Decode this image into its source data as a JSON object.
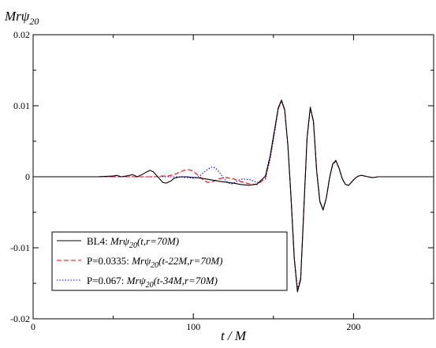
{
  "chart_data": {
    "type": "line",
    "title": "",
    "ylabel": "Mrψ20",
    "xlabel": "t / M",
    "xlim": [
      0,
      250
    ],
    "ylim": [
      -0.02,
      0.02
    ],
    "x_ticks": [
      0,
      100,
      200
    ],
    "y_ticks": [
      -0.02,
      -0.01,
      0,
      0.01,
      0.02
    ],
    "x_tick_labels": [
      "0",
      "100",
      "200"
    ],
    "y_tick_labels": [
      "-0.02",
      "-0.01",
      "0",
      "0.01",
      "0.02"
    ],
    "grid": false,
    "legend_position": "bottom-left",
    "series": [
      {
        "name": "BL4: Mrψ20(t,r=70M)",
        "color": "#000000",
        "dash": "solid",
        "x": [
          0,
          20,
          40,
          50,
          52,
          55,
          58,
          62,
          65,
          68,
          71,
          73,
          75,
          77,
          79,
          81,
          83,
          86,
          88,
          92,
          96,
          100,
          105,
          110,
          118,
          125,
          130,
          135,
          140,
          145,
          148,
          151,
          153,
          155,
          157,
          159,
          161,
          163,
          165,
          167,
          169,
          171,
          173,
          175,
          177,
          179,
          181,
          183,
          185,
          187,
          189,
          191,
          193,
          195,
          197,
          199,
          201,
          203,
          205,
          207,
          209,
          211,
          213,
          215,
          218,
          221,
          224,
          227,
          230,
          235,
          240,
          250
        ],
        "y": [
          0,
          0,
          0,
          0.0001,
          0.0002,
          0,
          0.0001,
          0.0003,
          0,
          0.0003,
          0.0007,
          0.0009,
          0.0007,
          0.0002,
          -0.0003,
          -0.0008,
          -0.0009,
          -0.0006,
          -0.0002,
          0,
          0,
          -0.0001,
          -0.0002,
          -0.0004,
          -0.0007,
          -0.0009,
          -0.0011,
          -0.0012,
          -0.001,
          0.0001,
          0.003,
          0.007,
          0.0097,
          0.0108,
          0.0095,
          0.0045,
          -0.003,
          -0.0115,
          -0.0162,
          -0.0145,
          -0.0045,
          0.0055,
          0.0098,
          0.0078,
          0.0008,
          -0.0035,
          -0.0047,
          -0.003,
          -0.0002,
          0.0018,
          0.0023,
          0.0012,
          -0.0003,
          -0.0011,
          -0.0012,
          -0.0007,
          -0.0002,
          0.0001,
          0.0002,
          0.0001,
          0,
          -0.0001,
          -0.0001,
          0,
          0,
          0,
          0,
          0,
          0,
          0,
          0,
          0
        ]
      },
      {
        "name": "P=0.0335: Mrψ20(t-22M,r=70M)",
        "color": "#ff0000",
        "dash": "6,3",
        "x": [
          22,
          40,
          50,
          60,
          70,
          76,
          80,
          84,
          88,
          91,
          94,
          97,
          100,
          103,
          106,
          109,
          112,
          116,
          120,
          125,
          130,
          135,
          140,
          145,
          148,
          151,
          153,
          155,
          157,
          159,
          161,
          163,
          165,
          167,
          169,
          171,
          173,
          175,
          177,
          179,
          181,
          183,
          185,
          187,
          189,
          191,
          193,
          195,
          197,
          199,
          201,
          203,
          205,
          207,
          209,
          211,
          213,
          215,
          218,
          221,
          224,
          227,
          230,
          235,
          240,
          250
        ],
        "y": [
          0,
          0,
          0,
          0,
          0,
          0,
          0.0001,
          0.0001,
          0.0003,
          0.0006,
          0.0009,
          0.001,
          0.0008,
          0.0002,
          -0.0004,
          -0.0008,
          -0.0007,
          -0.0003,
          -0.0001,
          -0.0003,
          -0.0007,
          -0.001,
          -0.0011,
          -0.0002,
          0.0028,
          0.0068,
          0.0096,
          0.0107,
          0.0094,
          0.0044,
          -0.003,
          -0.0114,
          -0.016,
          -0.0143,
          -0.0044,
          0.0054,
          0.0097,
          0.0077,
          0.0008,
          -0.0035,
          -0.0046,
          -0.003,
          -0.0002,
          0.0018,
          0.0022,
          0.0012,
          -0.0003,
          -0.0011,
          -0.0012,
          -0.0007,
          -0.0002,
          0.0001,
          0.0002,
          0.0001,
          0,
          -0.0001,
          -0.0001,
          0,
          0,
          0,
          0,
          0,
          0,
          0,
          0,
          0
        ]
      },
      {
        "name": "P=0.067: Mrψ20(t-34M,r=70M)",
        "color": "#0000ff",
        "dash": "1.5,2",
        "x": [
          34,
          50,
          60,
          70,
          80,
          90,
          95,
          100,
          104,
          107,
          110,
          112,
          114,
          116,
          118,
          120,
          122,
          124,
          126,
          128,
          131,
          135,
          140,
          145,
          148,
          151,
          153,
          155,
          157,
          159,
          161,
          163,
          165,
          167,
          169,
          171,
          173,
          175,
          177,
          179,
          181,
          183,
          185,
          187,
          189,
          191,
          193,
          195,
          197,
          199,
          201,
          203,
          205,
          207,
          209,
          211,
          213,
          215,
          218,
          221,
          224,
          227,
          230,
          235,
          240,
          250
        ],
        "y": [
          0,
          0,
          0,
          0,
          0,
          0,
          -0.0001,
          -0.0002,
          0.0001,
          0.0007,
          0.0012,
          0.0014,
          0.0012,
          0.0007,
          0.0001,
          -0.0005,
          -0.0009,
          -0.001,
          -0.0008,
          -0.0005,
          -0.0003,
          -0.0004,
          -0.0008,
          -0.0003,
          0.0025,
          0.0066,
          0.0095,
          0.0106,
          0.0094,
          0.0045,
          -0.0028,
          -0.0113,
          -0.0158,
          -0.0142,
          -0.0045,
          0.0053,
          0.0096,
          0.0077,
          0.0009,
          -0.0034,
          -0.0046,
          -0.003,
          -0.0003,
          0.0017,
          0.0022,
          0.0012,
          -0.0003,
          -0.0011,
          -0.0012,
          -0.0007,
          -0.0002,
          0.0001,
          0.0002,
          0.0001,
          0,
          -0.0001,
          -0.0001,
          0,
          0,
          0,
          0,
          0,
          0,
          0,
          0,
          0
        ]
      }
    ]
  },
  "legend": [
    {
      "label": "BL4: ",
      "expr": "Mrψ",
      "sub": "20",
      "tail": "(t,r=70M)"
    },
    {
      "label": "P=0.0335: ",
      "expr": "Mrψ",
      "sub": "20",
      "tail": "(t-22M,r=70M)"
    },
    {
      "label": "P=0.067: ",
      "expr": "Mrψ",
      "sub": "20",
      "tail": "(t-34M,r=70M)"
    }
  ],
  "ylabel_parts": {
    "main": "Mrψ",
    "sub": "20"
  },
  "xlabel_text": "t / M"
}
